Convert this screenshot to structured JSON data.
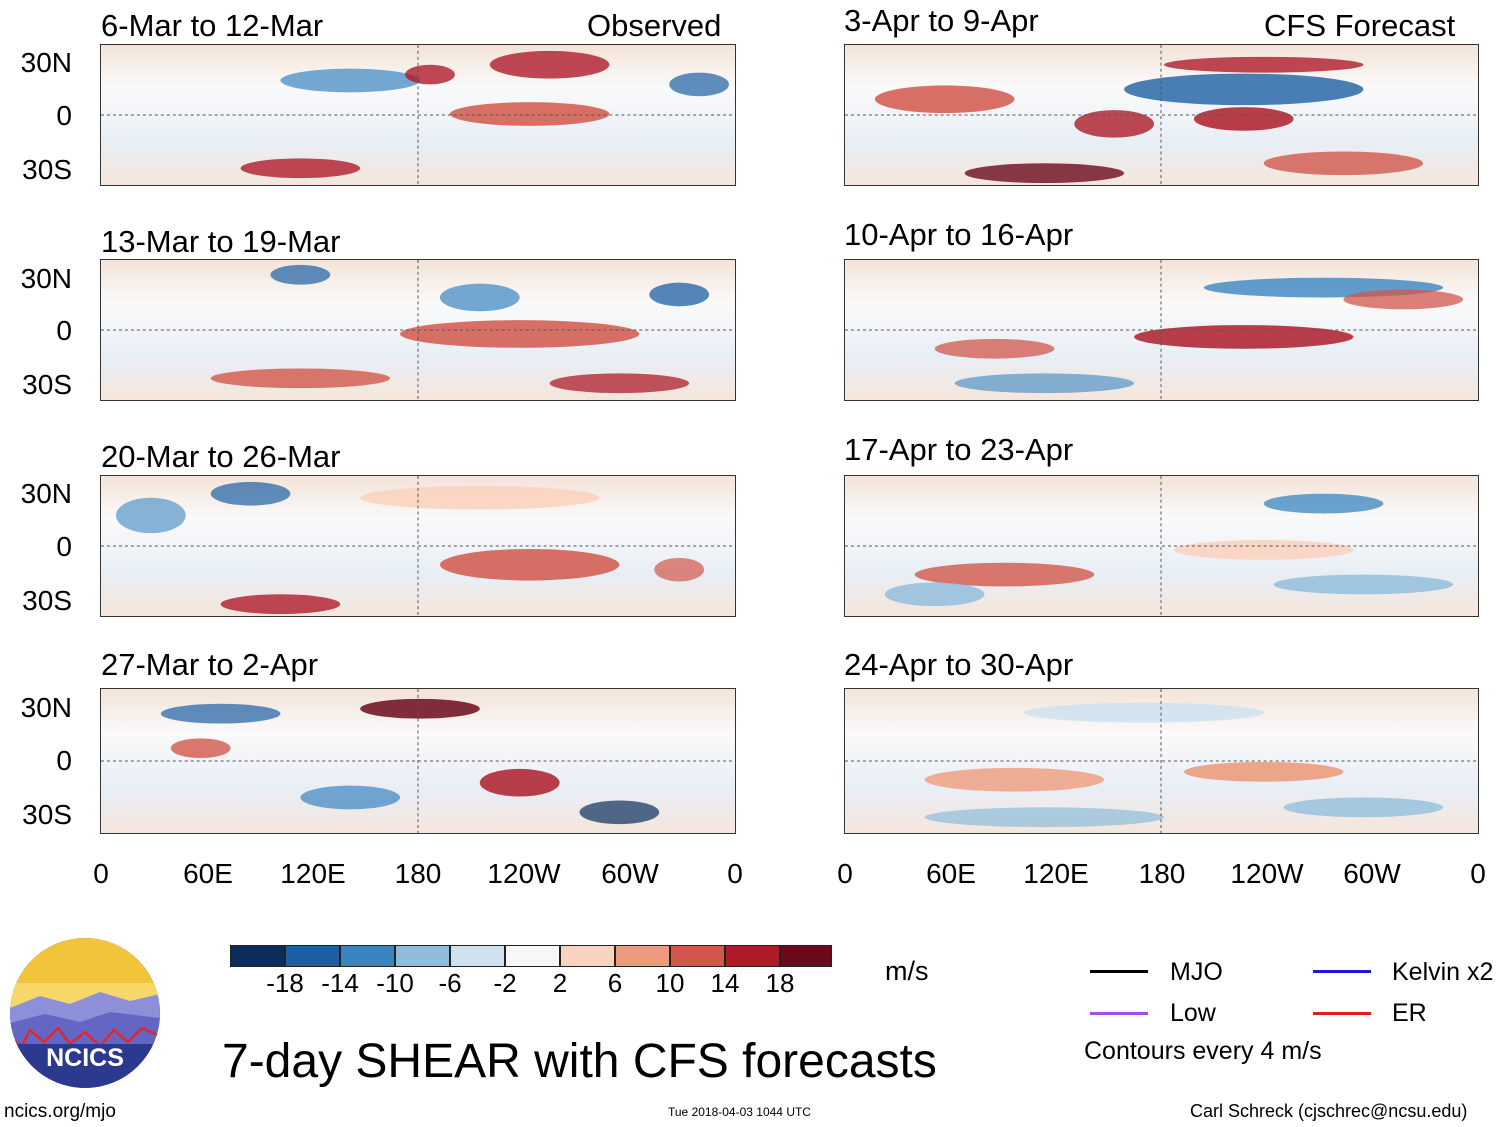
{
  "title": "7-day SHEAR with CFS forecasts",
  "left_header": "Observed",
  "right_header": "CFS Forecast",
  "panels_left": [
    {
      "label": "6-Mar to 12-Mar"
    },
    {
      "label": "13-Mar to 19-Mar"
    },
    {
      "label": "20-Mar to 26-Mar"
    },
    {
      "label": "27-Mar to 2-Apr"
    }
  ],
  "panels_right": [
    {
      "label": "3-Apr to 9-Apr"
    },
    {
      "label": "10-Apr to 16-Apr"
    },
    {
      "label": "17-Apr to 23-Apr"
    },
    {
      "label": "24-Apr to 30-Apr"
    }
  ],
  "y_ticks": [
    "30N",
    "0",
    "30S"
  ],
  "x_ticks": [
    "0",
    "60E",
    "120E",
    "180",
    "120W",
    "60W",
    "0"
  ],
  "colorbar": {
    "unit": "m/s",
    "labels": [
      "-18",
      "-14",
      "-10",
      "-6",
      "-2",
      "2",
      "6",
      "10",
      "14",
      "18"
    ],
    "colors": [
      "#0b2d5c",
      "#1d5fa4",
      "#3a85c0",
      "#8dbcdc",
      "#cfe2f0",
      "#f7f7f7",
      "#f9d3bf",
      "#ec9c7c",
      "#d2574b",
      "#ae1c2a",
      "#6b0a1c"
    ]
  },
  "legend": {
    "mjo": "MJO",
    "kelvin": "Kelvin x2",
    "low": "Low",
    "er": "ER",
    "contours": "Contours every 4 m/s",
    "colors": {
      "mjo": "#000000",
      "kelvin": "#1a1adc",
      "low": "#a64ce8",
      "er": "#e01e1e"
    }
  },
  "logo": {
    "text": "NCICS"
  },
  "footer": {
    "site": "ncics.org/mjo",
    "timestamp": "Tue 2018-04-03 1044 UTC",
    "author": "Carl Schreck (cjschrec@ncsu.edu)"
  }
}
